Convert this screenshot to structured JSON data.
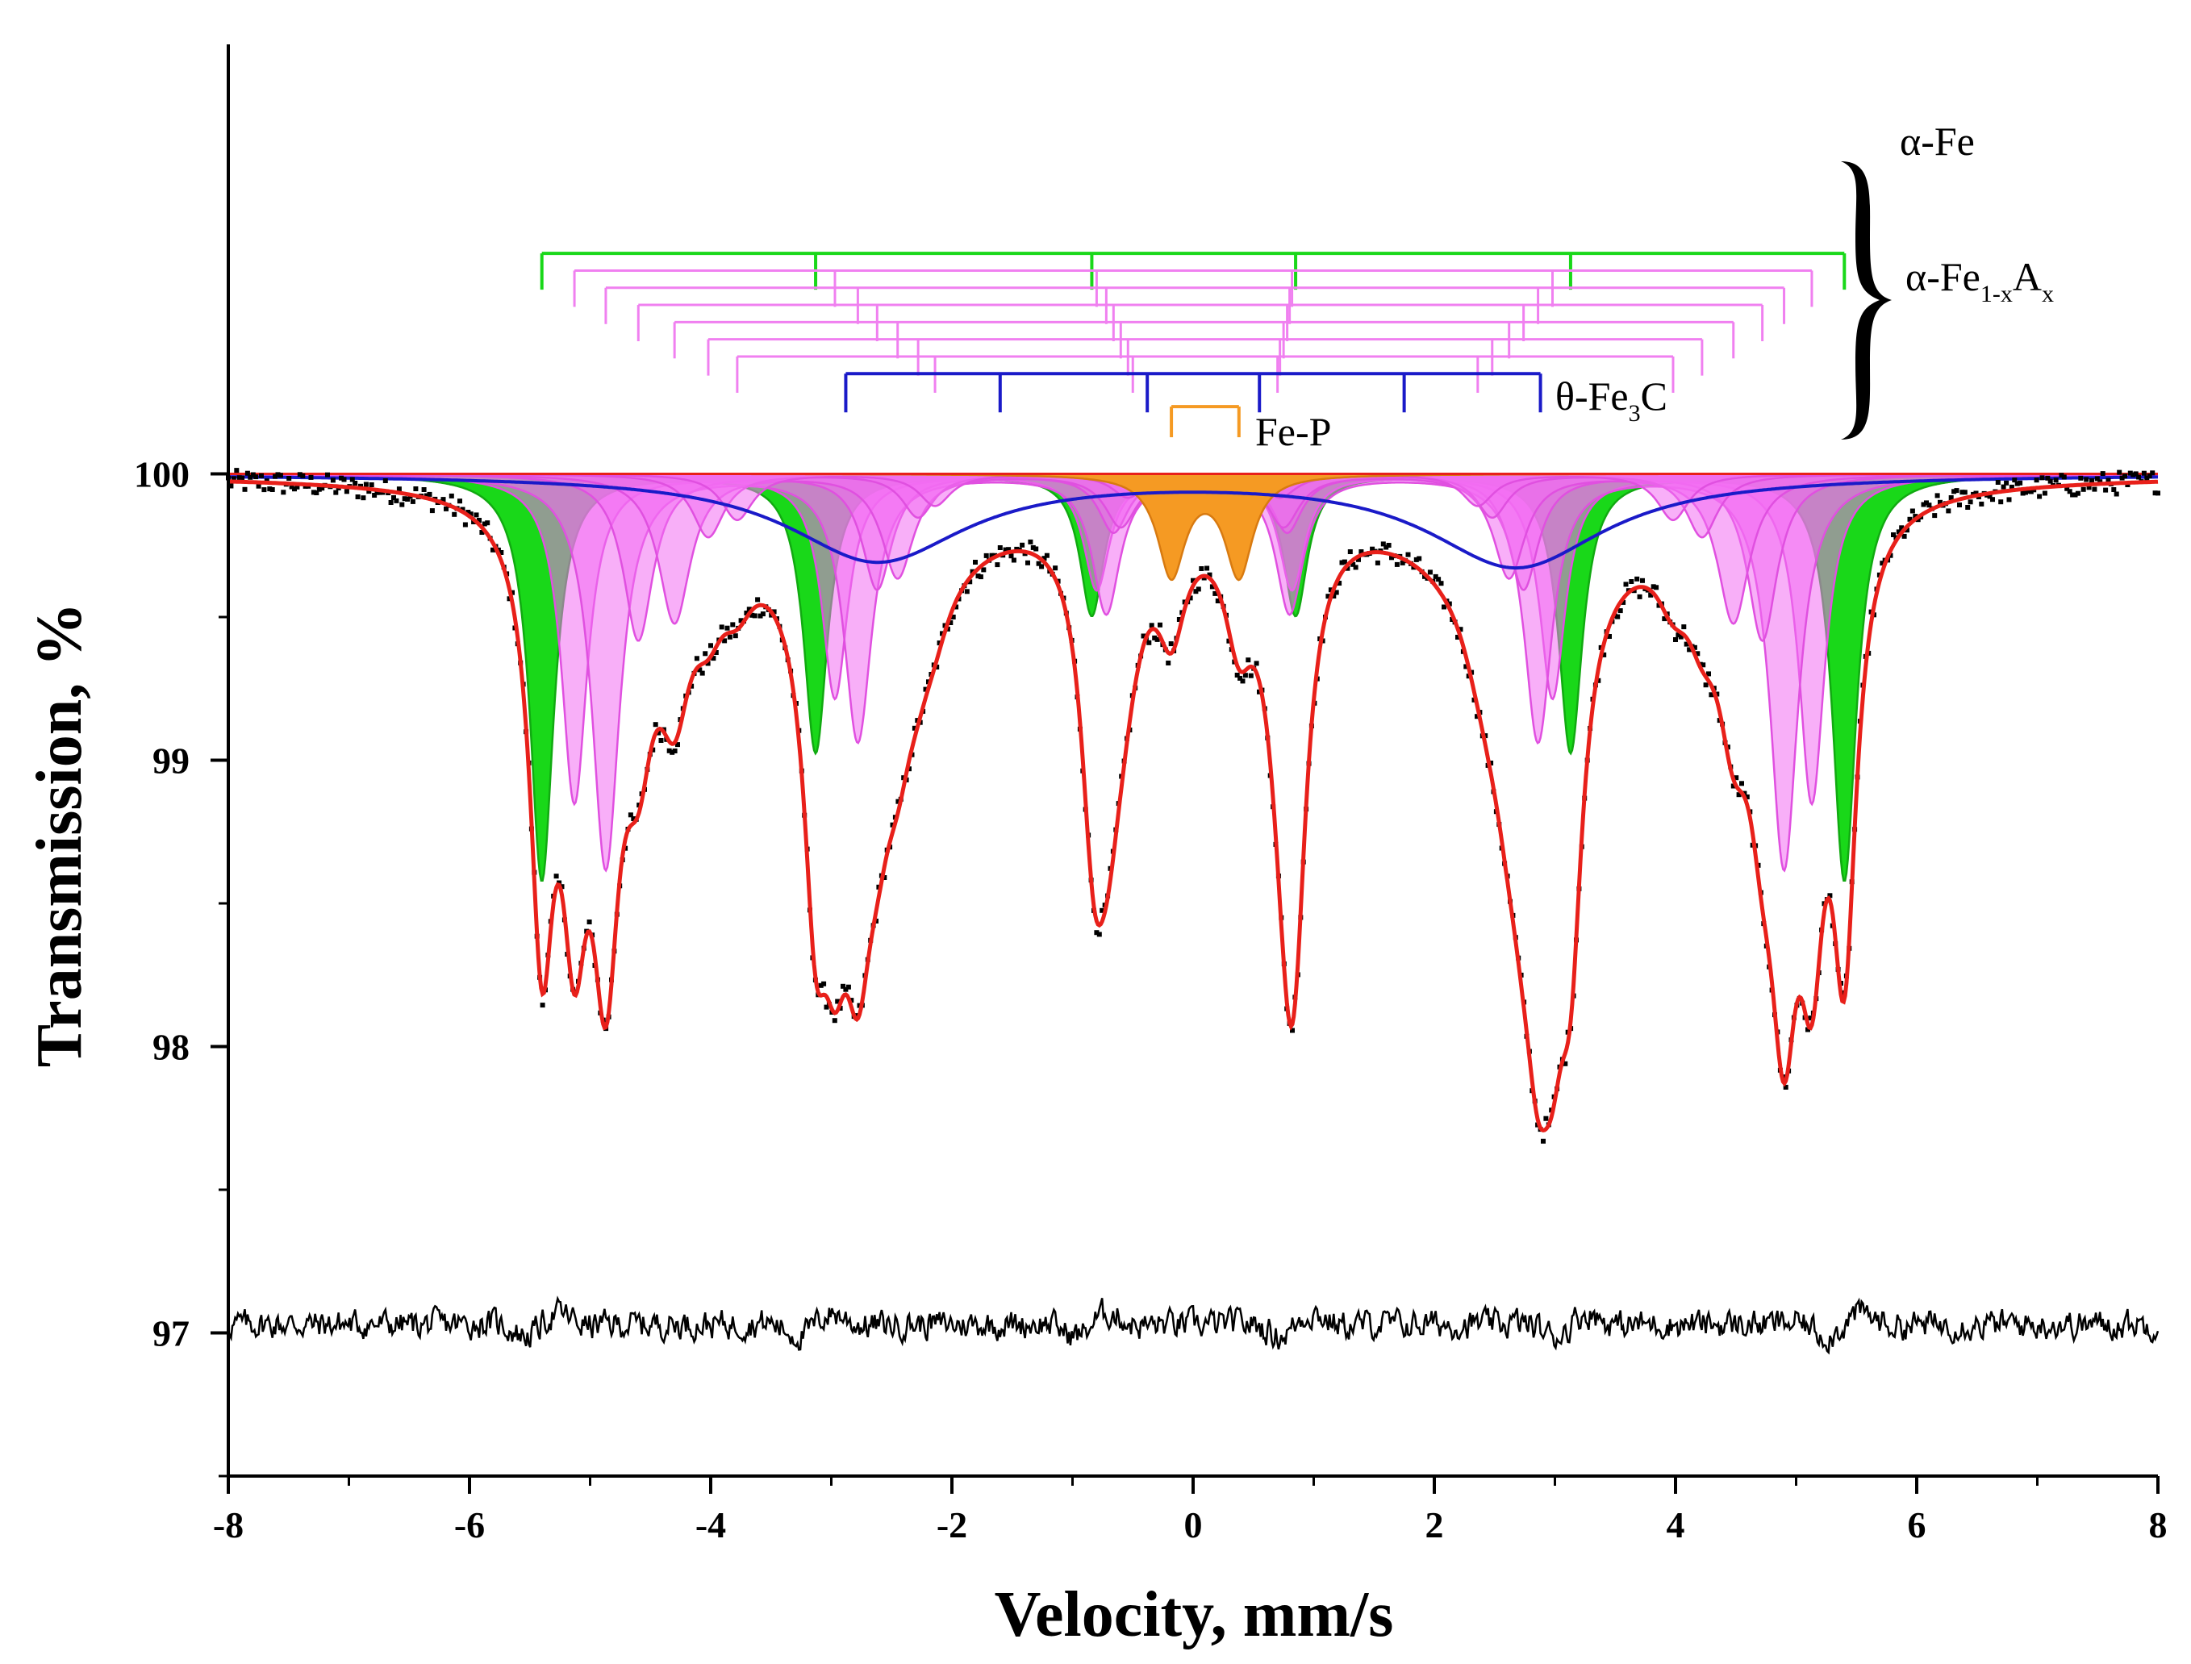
{
  "chart_data": {
    "type": "line",
    "title": "",
    "xlabel": "Velocity, mm/s",
    "ylabel": "Transmission, %",
    "xlim": [
      -8,
      8
    ],
    "ylim": [
      96.5,
      101.5
    ],
    "x_ticks": [
      "-8",
      "-6",
      "-4",
      "-2",
      "0",
      "2",
      "4",
      "6",
      "8"
    ],
    "y_ticks": [
      "97",
      "98",
      "99",
      "100"
    ],
    "colors": {
      "alpha_fe": "#19d819",
      "alpha_fe_ax": "#f080f0",
      "alpha_fe_ax_fill": "#f26ef2",
      "fe3c": "#1a1ac8",
      "fep": "#f59a23",
      "envelope": "#e8201a",
      "data": "#000000"
    },
    "series": [
      {
        "name": "alpha-Fe",
        "kind": "sextet",
        "lines_mm_s": [
          -5.4,
          -3.13,
          -0.84,
          0.85,
          3.13,
          5.4
        ],
        "depths_pct": [
          1.42,
          0.97,
          0.49,
          0.49,
          0.97,
          1.42
        ],
        "width_mm_s": 0.24
      },
      {
        "name": "alpha-Fe1-xAx (1)",
        "kind": "sextet",
        "lines_mm_s": [
          -5.13,
          -2.97,
          -0.8,
          0.82,
          2.98,
          5.13
        ],
        "depths_pct": [
          1.15,
          0.78,
          0.4,
          0.4,
          0.78,
          1.15
        ],
        "width_mm_s": 0.26
      },
      {
        "name": "alpha-Fe1-xAx (2)",
        "kind": "sextet",
        "lines_mm_s": [
          -4.87,
          -2.78,
          -0.72,
          0.8,
          2.86,
          4.9
        ],
        "depths_pct": [
          1.38,
          0.93,
          0.48,
          0.48,
          0.93,
          1.38
        ],
        "width_mm_s": 0.28
      },
      {
        "name": "alpha-Fe1-xAx (3)",
        "kind": "sextet",
        "lines_mm_s": [
          -4.6,
          -2.62,
          -0.66,
          0.78,
          2.74,
          4.72
        ],
        "depths_pct": [
          0.58,
          0.4,
          0.2,
          0.2,
          0.4,
          0.58
        ],
        "width_mm_s": 0.3
      },
      {
        "name": "alpha-Fe1-xAx (4)",
        "kind": "sextet",
        "lines_mm_s": [
          -4.3,
          -2.45,
          -0.6,
          0.75,
          2.62,
          4.48
        ],
        "depths_pct": [
          0.52,
          0.36,
          0.18,
          0.18,
          0.36,
          0.52
        ],
        "width_mm_s": 0.32
      },
      {
        "name": "alpha-Fe1-xAx (5)",
        "kind": "sextet",
        "lines_mm_s": [
          -4.02,
          -2.28,
          -0.54,
          0.72,
          2.48,
          4.22
        ],
        "depths_pct": [
          0.22,
          0.15,
          0.08,
          0.08,
          0.15,
          0.22
        ],
        "width_mm_s": 0.32
      },
      {
        "name": "alpha-Fe1-xAx (6)",
        "kind": "sextet",
        "lines_mm_s": [
          -3.78,
          -2.14,
          -0.5,
          0.7,
          2.36,
          3.98
        ],
        "depths_pct": [
          0.16,
          0.11,
          0.05,
          0.05,
          0.11,
          0.16
        ],
        "width_mm_s": 0.32
      },
      {
        "name": "theta-Fe3C",
        "kind": "broad_doublet",
        "lines_mm_s": [
          -2.62,
          2.68
        ],
        "depths_pct": [
          0.3,
          0.32
        ],
        "width_mm_s": 1.8
      },
      {
        "name": "Fe-P",
        "kind": "doublet",
        "lines_mm_s": [
          -0.18,
          0.38
        ],
        "depths_pct": [
          0.35,
          0.35
        ],
        "width_mm_s": 0.28
      }
    ],
    "residual": {
      "baseline_pct": 97.03,
      "noise_pct": 0.035
    },
    "annotations": {
      "alpha_fe": "α-Fe",
      "alpha_fe_ax_main": "α-Fe",
      "alpha_fe_ax_sub1": "1-x",
      "alpha_fe_ax_A": "A",
      "alpha_fe_ax_sub2": "x",
      "fe3c_main": "θ-Fe",
      "fe3c_sub": "3",
      "fe3c_end": "C",
      "fep": "Fe-P"
    }
  }
}
